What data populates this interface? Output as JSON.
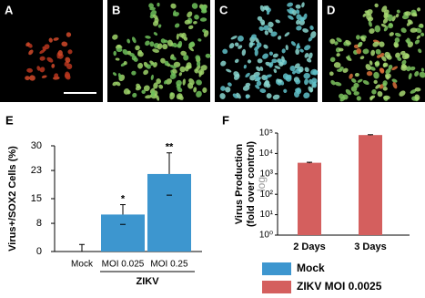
{
  "panels": [
    {
      "label": "A"
    },
    {
      "label": "B"
    },
    {
      "label": "C"
    },
    {
      "label": "D"
    }
  ],
  "chart_data": [
    {
      "type": "bar",
      "panel": "E",
      "ylabel": "Virus+/SOX2 Cells (%)",
      "categories": [
        "Mock",
        "MOI 0.025",
        "MOI 0.25"
      ],
      "group_label": "ZIKV",
      "values": [
        0,
        10.5,
        22
      ],
      "errors": [
        2,
        2.8,
        6
      ],
      "annotations": [
        null,
        "*",
        "**"
      ],
      "color": "#3d96cf",
      "ylim": [
        0,
        30
      ],
      "yticks": [
        0,
        8,
        15,
        23,
        30
      ]
    },
    {
      "type": "logbar",
      "panel": "F",
      "ylabel": [
        "Virus Production",
        "(fold over control)"
      ],
      "scale_note": "log",
      "categories": [
        "2 Days",
        "3 Days"
      ],
      "log_scale": true,
      "legend": "bottom",
      "series": [
        {
          "name": "Mock",
          "color": "#3d96cf",
          "values": [
            1,
            1
          ]
        },
        {
          "name": "ZIKV MOI 0.0025",
          "color": "#d45f5e",
          "values": [
            3500,
            80000
          ],
          "errors": [
            200,
            3000
          ]
        }
      ],
      "ylim": [
        1,
        100000
      ],
      "yticks": [
        {
          "value": 1,
          "label": "10⁰"
        },
        {
          "value": 10,
          "label": "10¹"
        },
        {
          "value": 100,
          "label": "10²"
        },
        {
          "value": 1000,
          "label": "10³"
        },
        {
          "value": 10000,
          "label": "10⁴"
        },
        {
          "value": 100000,
          "label": "10⁵"
        }
      ]
    }
  ]
}
